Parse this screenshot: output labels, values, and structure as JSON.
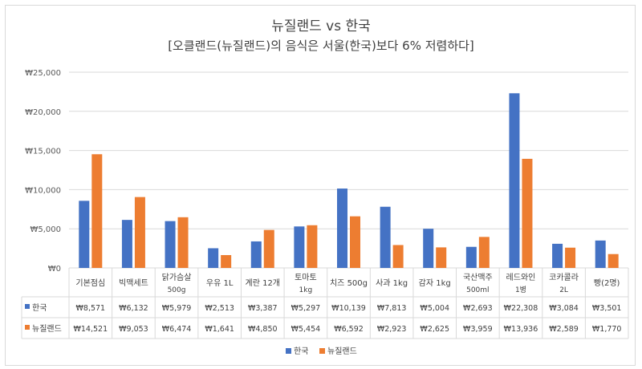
{
  "chart_data": {
    "type": "bar",
    "title": "뉴질랜드 vs 한국",
    "subtitle": "[오클랜드(뉴질랜드)의 음식은 서울(한국)보다 6% 저렴하다]",
    "categories": [
      [
        "기본점심"
      ],
      [
        "빅맥세트"
      ],
      [
        "닭가슴살",
        "500g"
      ],
      [
        "우유 1L"
      ],
      [
        "계란 12개"
      ],
      [
        "토마토",
        "1kg"
      ],
      [
        "치즈 500g"
      ],
      [
        "사과 1kg"
      ],
      [
        "감자 1kg"
      ],
      [
        "국산맥주",
        "500ml"
      ],
      [
        "레드와인",
        "1병"
      ],
      [
        "코카콜라",
        "2L"
      ],
      [
        "빵(2명)"
      ]
    ],
    "series": [
      {
        "name": "한국",
        "color": "#4472c4",
        "values": [
          8571,
          6132,
          5979,
          2513,
          3387,
          5297,
          10139,
          7813,
          5004,
          2693,
          22308,
          3084,
          3501
        ],
        "labels": [
          "₩8,571",
          "₩6,132",
          "₩5,979",
          "₩2,513",
          "₩3,387",
          "₩5,297",
          "₩10,139",
          "₩7,813",
          "₩5,004",
          "₩2,693",
          "₩22,308",
          "₩3,084",
          "₩3,501"
        ]
      },
      {
        "name": "뉴질랜드",
        "color": "#ed7d31",
        "values": [
          14521,
          9053,
          6474,
          1641,
          4850,
          5454,
          6592,
          2923,
          2625,
          3959,
          13936,
          2589,
          1770
        ],
        "labels": [
          "₩14,521",
          "₩9,053",
          "₩6,474",
          "₩1,641",
          "₩4,850",
          "₩5,454",
          "₩6,592",
          "₩2,923",
          "₩2,625",
          "₩3,959",
          "₩13,936",
          "₩2,589",
          "₩1,770"
        ]
      }
    ],
    "yticks": [
      0,
      5000,
      10000,
      15000,
      20000,
      25000
    ],
    "ytick_labels": [
      "₩0",
      "₩5,000",
      "₩10,000",
      "₩15,000",
      "₩20,000",
      "₩25,000"
    ],
    "ylim": [
      0,
      25000
    ],
    "grid": true,
    "legend": "bottom-center",
    "data_table": true
  }
}
